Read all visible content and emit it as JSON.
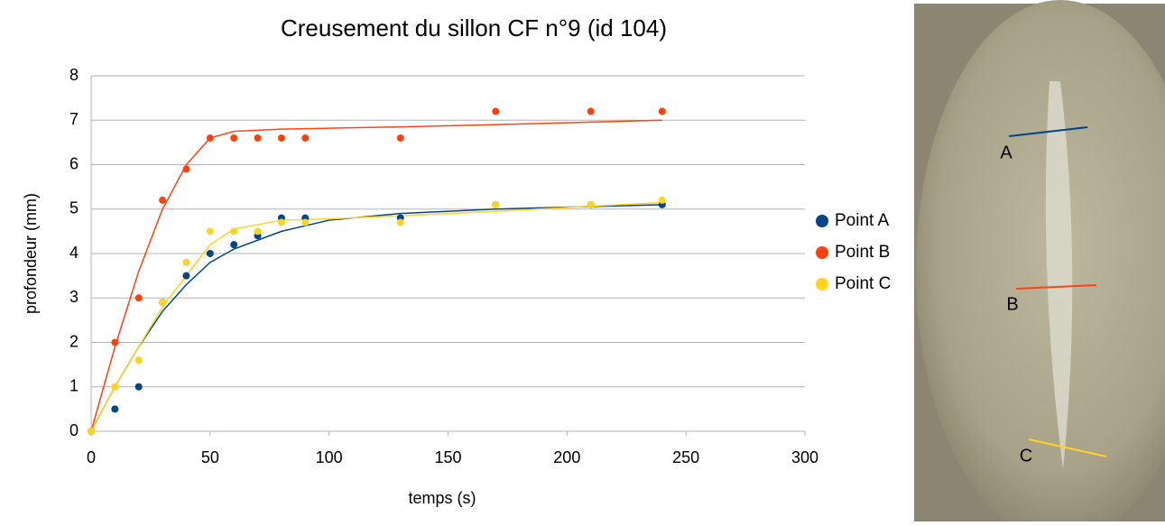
{
  "chart_data": {
    "type": "scatter",
    "title": "Creusement du sillon CF n°9 (id 104)",
    "xlabel": "temps (s)",
    "ylabel": "profondeur (mm)",
    "x": [
      0,
      10,
      20,
      30,
      40,
      50,
      60,
      70,
      80,
      90,
      130,
      170,
      210,
      240
    ],
    "series": [
      {
        "name": "Point A",
        "color": "#004586",
        "values": [
          0,
          0.5,
          1,
          2.9,
          3.5,
          4,
          4.2,
          4.4,
          4.8,
          4.8,
          4.8,
          5.1,
          5.1,
          5.1
        ],
        "trend": [
          0,
          1.0,
          1.9,
          2.7,
          3.3,
          3.8,
          4.1,
          4.5,
          4.75,
          4.9,
          5.0,
          5.1
        ]
      },
      {
        "name": "Point B",
        "color": "#ff420e",
        "values": [
          0,
          2,
          3,
          5.2,
          5.9,
          6.6,
          6.6,
          6.6,
          6.6,
          6.6,
          6.6,
          7.2,
          7.2,
          7.2
        ],
        "trend": [
          0,
          1.9,
          3.6,
          5.0,
          6.0,
          6.6,
          6.75,
          6.8,
          6.82,
          6.85,
          6.9,
          7.0
        ]
      },
      {
        "name": "Point C",
        "color": "#ffd320",
        "values": [
          0,
          1,
          1.6,
          2.9,
          3.8,
          4.5,
          4.5,
          4.5,
          4.7,
          4.7,
          4.7,
          5.1,
          5.1,
          5.2
        ],
        "trend": [
          0,
          1.0,
          1.9,
          2.8,
          3.5,
          4.2,
          4.55,
          4.75,
          4.78,
          4.85,
          4.95,
          5.15
        ]
      }
    ],
    "trend_x": [
      0,
      10,
      20,
      30,
      40,
      50,
      60,
      80,
      100,
      130,
      170,
      240
    ],
    "xlim": [
      0,
      300
    ],
    "xticks": [
      0,
      50,
      100,
      150,
      200,
      250,
      300
    ],
    "ylim": [
      0,
      8
    ],
    "yticks": [
      0,
      1,
      2,
      3,
      4,
      5,
      6,
      7,
      8
    ],
    "grid": true,
    "legend": "right"
  },
  "photo_labels": [
    "A",
    "B",
    "C"
  ]
}
